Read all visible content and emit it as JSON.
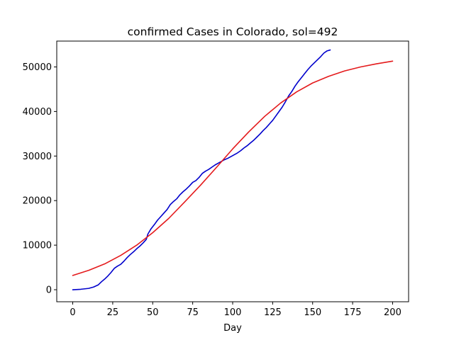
{
  "chart_data": {
    "type": "line",
    "title": "confirmed Cases in Colorado, sol=492",
    "xlabel": "Day",
    "ylabel": "",
    "xlim": [
      -10,
      210
    ],
    "ylim": [
      -2700,
      55800
    ],
    "xticks": [
      0,
      25,
      50,
      75,
      100,
      125,
      150,
      175,
      200
    ],
    "yticks": [
      0,
      10000,
      20000,
      30000,
      40000,
      50000
    ],
    "grid": false,
    "legend": "none",
    "series": [
      {
        "color": "#0000cc",
        "x": [
          0,
          5,
          10,
          13,
          16,
          18,
          20,
          22,
          24,
          26,
          28,
          30,
          32,
          34,
          36,
          38,
          40,
          42,
          44,
          46,
          47,
          49,
          51,
          53,
          55,
          57,
          59,
          61,
          63,
          65,
          67,
          69,
          71,
          73,
          75,
          77,
          79,
          81,
          83,
          85,
          87,
          89,
          91,
          93,
          95,
          97,
          99,
          101,
          103,
          105,
          107,
          109,
          111,
          113,
          115,
          117,
          119,
          121,
          123,
          125,
          127,
          129,
          131,
          133,
          135,
          137,
          139,
          141,
          143,
          145,
          147,
          149,
          151,
          153,
          155,
          157,
          159,
          161
        ],
        "values": [
          0,
          100,
          300,
          600,
          1100,
          1800,
          2400,
          3100,
          3900,
          4800,
          5300,
          5700,
          6400,
          7200,
          7900,
          8500,
          9200,
          9800,
          10500,
          11300,
          12500,
          13700,
          14600,
          15600,
          16400,
          17200,
          18000,
          19100,
          19800,
          20400,
          21300,
          22000,
          22600,
          23300,
          24100,
          24500,
          25200,
          26100,
          26600,
          27000,
          27500,
          28000,
          28400,
          28800,
          29200,
          29500,
          29900,
          30300,
          30700,
          31200,
          31800,
          32300,
          32900,
          33500,
          34200,
          34900,
          35700,
          36400,
          37200,
          38000,
          39000,
          40000,
          41000,
          42200,
          43500,
          44500,
          45700,
          46700,
          47600,
          48500,
          49400,
          50200,
          50900,
          51600,
          52300,
          53100,
          53600,
          53800
        ]
      },
      {
        "color": "#e41a1c",
        "x": [
          0,
          10,
          20,
          30,
          40,
          50,
          60,
          70,
          80,
          90,
          100,
          110,
          120,
          130,
          140,
          150,
          160,
          170,
          180,
          190,
          200
        ],
        "values": [
          3200,
          4350,
          5800,
          7700,
          10000,
          12800,
          16000,
          19700,
          23500,
          27500,
          31600,
          35400,
          38900,
          41900,
          44400,
          46400,
          47900,
          49100,
          50000,
          50700,
          51300
        ]
      }
    ]
  }
}
